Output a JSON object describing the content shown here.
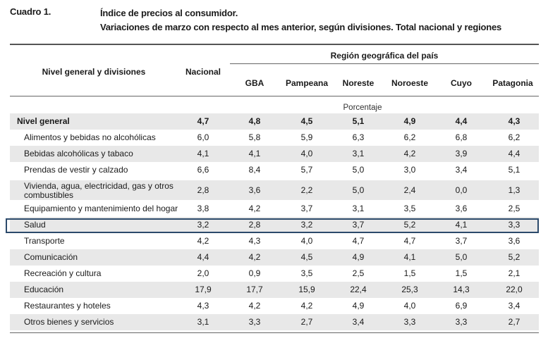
{
  "header": {
    "cuadro": "Cuadro 1.",
    "title_line1": "Índice de precios al consumidor.",
    "title_line2": "Variaciones de marzo con respecto al mes anterior, según divisiones. Total nacional y regiones"
  },
  "table": {
    "col_label": "Nivel general y divisiones",
    "col_national": "Nacional",
    "region_group": "Región geográfica del país",
    "regions": [
      "GBA",
      "Pampeana",
      "Noreste",
      "Noroeste",
      "Cuyo",
      "Patagonia"
    ],
    "unit": "Porcentaje",
    "rows": [
      {
        "label": "Nivel general",
        "values": [
          "4,7",
          "4,8",
          "4,5",
          "5,1",
          "4,9",
          "4,4",
          "4,3"
        ]
      },
      {
        "label": "Alimentos y bebidas no alcohólicas",
        "values": [
          "6,0",
          "5,8",
          "5,9",
          "6,3",
          "6,2",
          "6,8",
          "6,2"
        ]
      },
      {
        "label": "Bebidas alcohólicas y tabaco",
        "values": [
          "4,1",
          "4,1",
          "4,0",
          "3,1",
          "4,2",
          "3,9",
          "4,4"
        ]
      },
      {
        "label": "Prendas de vestir y calzado",
        "values": [
          "6,6",
          "8,4",
          "5,7",
          "5,0",
          "3,0",
          "3,4",
          "5,1"
        ]
      },
      {
        "label": "Vivienda, agua, electricidad, gas y otros combustibles",
        "values": [
          "2,8",
          "3,6",
          "2,2",
          "5,0",
          "2,4",
          "0,0",
          "1,3"
        ]
      },
      {
        "label": "Equipamiento y mantenimiento del hogar",
        "values": [
          "3,8",
          "4,2",
          "3,7",
          "3,1",
          "3,5",
          "3,6",
          "2,5"
        ]
      },
      {
        "label": "Salud",
        "values": [
          "3,2",
          "2,8",
          "3,2",
          "3,7",
          "5,2",
          "4,1",
          "3,3"
        ]
      },
      {
        "label": "Transporte",
        "values": [
          "4,2",
          "4,3",
          "4,0",
          "4,7",
          "4,7",
          "3,7",
          "3,6"
        ]
      },
      {
        "label": "Comunicación",
        "values": [
          "4,4",
          "4,2",
          "4,5",
          "4,9",
          "4,1",
          "5,0",
          "5,2"
        ]
      },
      {
        "label": "Recreación y cultura",
        "values": [
          "2,0",
          "0,9",
          "3,5",
          "2,5",
          "1,5",
          "1,5",
          "2,1"
        ]
      },
      {
        "label": "Educación",
        "values": [
          "17,9",
          "17,7",
          "15,9",
          "22,4",
          "25,3",
          "14,3",
          "22,0"
        ]
      },
      {
        "label": "Restaurantes y hoteles",
        "values": [
          "4,3",
          "4,2",
          "4,2",
          "4,9",
          "4,0",
          "6,9",
          "3,4"
        ]
      },
      {
        "label": "Otros bienes y servicios",
        "values": [
          "3,1",
          "3,3",
          "2,7",
          "3,4",
          "3,3",
          "3,3",
          "2,7"
        ]
      }
    ]
  }
}
